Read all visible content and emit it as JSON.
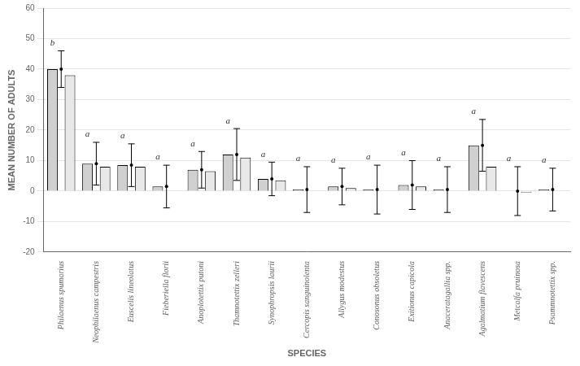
{
  "chart_data": {
    "type": "bar",
    "xlabel": "SPECIES",
    "ylabel": "MEAN NUMBER OF ADULTS",
    "categories": [
      "Philaenus spumarius",
      "Neophilaenus campestris",
      "Euscelis lineolatus",
      "Fieberiella florii",
      "Anoplotettix putoni",
      "Thamnotettix zelleri",
      "Synophropsis laurii",
      "Cercopis sanguinolenta",
      "Allygus modestus",
      "Conosonus obsoletus",
      "Exitionus capicola",
      "Anaceratagallia spp.",
      "Agalmatium flavescens",
      "Metcalfa pruinosa",
      "Psammnotettix spp."
    ],
    "series": [
      {
        "color": "#d0d0d0",
        "values": [
          40.0,
          9.0,
          8.5,
          1.5,
          7.0,
          12.0,
          4.0,
          0.5,
          1.5,
          0.5,
          2.0,
          0.5,
          15.0,
          0.0,
          0.5
        ],
        "errors": [
          6.0,
          7.0,
          7.0,
          7.0,
          6.0,
          8.5,
          5.5,
          7.5,
          6.0,
          8.0,
          8.0,
          7.5,
          8.5,
          8.0,
          7.0
        ],
        "annotations": [
          "b",
          "a",
          "a",
          "a",
          "a",
          "a",
          "a",
          "a",
          "a",
          "a",
          "a",
          "a",
          "a",
          "a",
          "a"
        ]
      },
      {
        "color": "#e8e8e8",
        "values": [
          38.0,
          8.0,
          8.0,
          0.0,
          6.5,
          11.0,
          3.5,
          0.0,
          1.0,
          0.0,
          1.5,
          0.0,
          8.0,
          -0.5,
          0.0
        ]
      }
    ],
    "ylim": [
      -20,
      60
    ],
    "yticks": [
      -20,
      -10,
      0,
      10,
      20,
      30,
      40,
      50,
      60
    ],
    "grid": true
  }
}
